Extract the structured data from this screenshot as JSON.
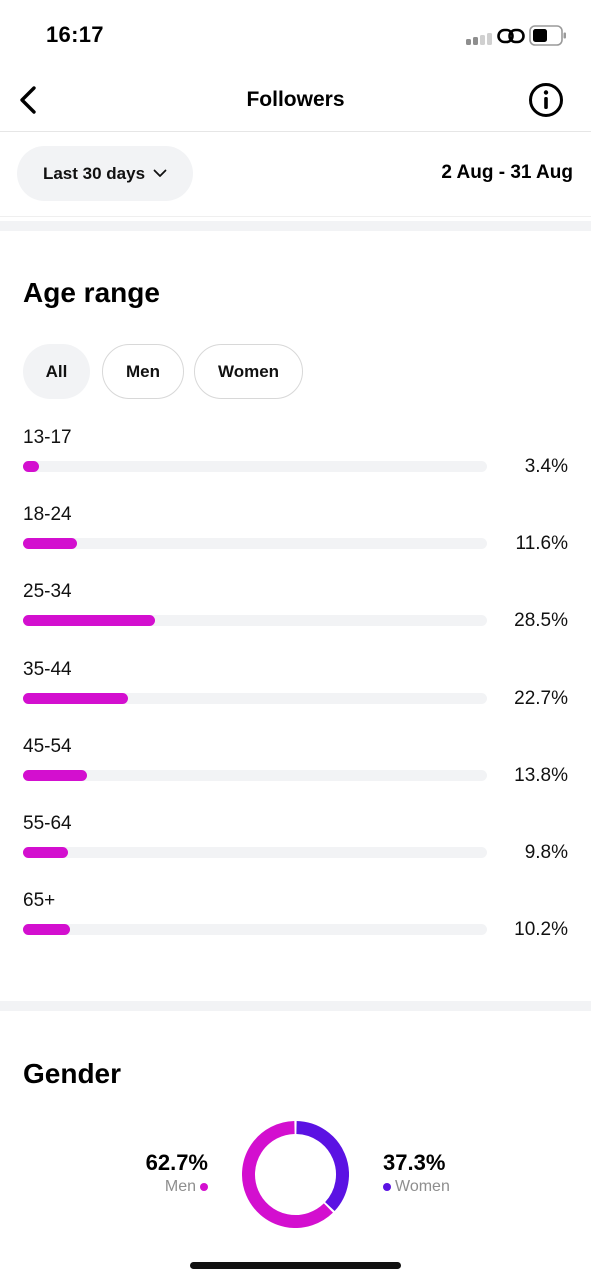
{
  "status_bar": {
    "time": "16:17"
  },
  "header": {
    "title": "Followers"
  },
  "filter": {
    "period_label": "Last 30 days",
    "date_range": "2 Aug - 31 Aug"
  },
  "age_section": {
    "title": "Age range",
    "tabs": [
      {
        "label": "All",
        "active": true
      },
      {
        "label": "Men",
        "active": false
      },
      {
        "label": "Women",
        "active": false
      }
    ],
    "rows": [
      {
        "label": "13-17",
        "percent_text": "3.4%",
        "value": 3.4
      },
      {
        "label": "18-24",
        "percent_text": "11.6%",
        "value": 11.6
      },
      {
        "label": "25-34",
        "percent_text": "28.5%",
        "value": 28.5
      },
      {
        "label": "35-44",
        "percent_text": "22.7%",
        "value": 22.7
      },
      {
        "label": "45-54",
        "percent_text": "13.8%",
        "value": 13.8
      },
      {
        "label": "55-64",
        "percent_text": "9.8%",
        "value": 9.8
      },
      {
        "label": "65+",
        "percent_text": "10.2%",
        "value": 10.2
      }
    ],
    "bar_color": "#d30fcf"
  },
  "gender_section": {
    "title": "Gender",
    "men": {
      "percent_text": "62.7%",
      "label": "Men",
      "value": 62.7,
      "color": "#d30fcf"
    },
    "women": {
      "percent_text": "37.3%",
      "label": "Women",
      "value": 37.3,
      "color": "#5b12e3"
    }
  },
  "chart_data": [
    {
      "type": "bar",
      "orientation": "horizontal",
      "title": "Age range",
      "categories": [
        "13-17",
        "18-24",
        "25-34",
        "35-44",
        "45-54",
        "55-64",
        "65+"
      ],
      "values": [
        3.4,
        11.6,
        28.5,
        22.7,
        13.8,
        9.8,
        10.2
      ],
      "unit": "%"
    },
    {
      "type": "pie",
      "title": "Gender",
      "categories": [
        "Men",
        "Women"
      ],
      "values": [
        62.7,
        37.3
      ],
      "unit": "%"
    }
  ],
  "icons": {
    "back": "chevron-left-icon",
    "info": "info-icon",
    "dropdown": "chevron-down-icon",
    "signal": "signal-icon",
    "link": "link-icon",
    "battery": "battery-icon"
  }
}
